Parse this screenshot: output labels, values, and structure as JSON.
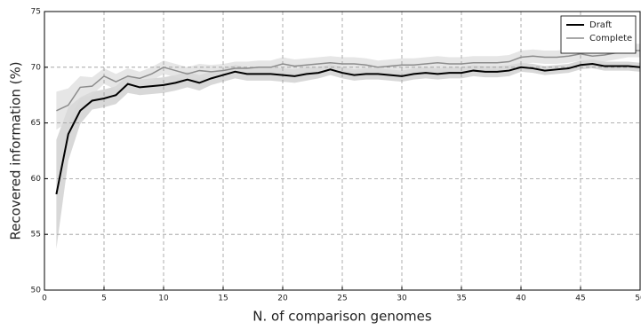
{
  "chart_data": {
    "type": "line",
    "x_label": "N. of comparison genomes",
    "y_label": "Recovered information (%)",
    "x": [
      1,
      2,
      3,
      4,
      5,
      6,
      7,
      8,
      9,
      10,
      11,
      12,
      13,
      14,
      15,
      16,
      17,
      18,
      19,
      20,
      21,
      22,
      23,
      24,
      25,
      26,
      27,
      28,
      29,
      30,
      31,
      32,
      33,
      34,
      35,
      36,
      37,
      38,
      39,
      40,
      41,
      42,
      43,
      44,
      45,
      46,
      47,
      48,
      49,
      50
    ],
    "series": [
      {
        "name": "Draft",
        "color": "#000000",
        "band_color": "#c8c8c8",
        "values": [
          58.6,
          64.0,
          66.1,
          67.0,
          67.2,
          67.5,
          68.5,
          68.2,
          68.3,
          68.4,
          68.6,
          68.9,
          68.6,
          69.0,
          69.3,
          69.6,
          69.4,
          69.4,
          69.4,
          69.3,
          69.2,
          69.4,
          69.5,
          69.8,
          69.5,
          69.3,
          69.4,
          69.4,
          69.3,
          69.2,
          69.4,
          69.5,
          69.4,
          69.5,
          69.5,
          69.7,
          69.6,
          69.6,
          69.7,
          70.0,
          69.9,
          69.7,
          69.8,
          69.9,
          70.2,
          70.3,
          70.1,
          70.1,
          70.1,
          70.0
        ],
        "error": [
          4.9,
          2.4,
          1.2,
          0.8,
          0.8,
          0.8,
          0.8,
          0.7,
          0.7,
          0.7,
          0.7,
          0.7,
          0.7,
          0.6,
          0.6,
          0.6,
          0.6,
          0.6,
          0.6,
          0.6,
          0.6,
          0.6,
          0.5,
          0.5,
          0.5,
          0.5,
          0.5,
          0.5,
          0.5,
          0.5,
          0.5,
          0.5,
          0.5,
          0.5,
          0.5,
          0.5,
          0.5,
          0.5,
          0.5,
          0.4,
          0.4,
          0.4,
          0.4,
          0.4,
          0.4,
          0.4,
          0.4,
          0.4,
          0.4,
          0.4
        ]
      },
      {
        "name": "Complete",
        "color": "#8c8c8c",
        "band_color": "#dcdcdc",
        "values": [
          66.1,
          66.6,
          68.2,
          68.3,
          69.2,
          68.7,
          69.2,
          69.0,
          69.4,
          70.0,
          69.7,
          69.4,
          69.7,
          69.6,
          69.7,
          69.9,
          69.9,
          70.0,
          70.0,
          70.3,
          70.1,
          70.2,
          70.3,
          70.4,
          70.3,
          70.3,
          70.2,
          70.0,
          70.1,
          70.2,
          70.2,
          70.3,
          70.4,
          70.3,
          70.3,
          70.4,
          70.4,
          70.4,
          70.5,
          70.9,
          71.0,
          70.9,
          70.9,
          71.0,
          71.2,
          71.0,
          71.1,
          71.3,
          71.5,
          71.5
        ],
        "error": [
          1.7,
          1.5,
          1.0,
          0.8,
          0.7,
          0.7,
          0.7,
          0.6,
          0.6,
          0.6,
          0.6,
          0.6,
          0.6,
          0.6,
          0.6,
          0.6,
          0.6,
          0.6,
          0.6,
          0.6,
          0.6,
          0.6,
          0.6,
          0.6,
          0.6,
          0.6,
          0.6,
          0.6,
          0.6,
          0.6,
          0.6,
          0.6,
          0.6,
          0.6,
          0.6,
          0.6,
          0.6,
          0.6,
          0.6,
          0.6,
          0.6,
          0.6,
          0.6,
          0.6,
          0.6,
          0.6,
          0.6,
          0.6,
          0.6,
          0.6
        ]
      }
    ],
    "xlim": [
      0,
      50
    ],
    "xticks": [
      0,
      5,
      10,
      15,
      20,
      25,
      30,
      35,
      40,
      45,
      50
    ],
    "ylim": [
      50,
      75
    ],
    "yticks": [
      50,
      55,
      60,
      65,
      70,
      75
    ],
    "grid": true,
    "legend": "upper right"
  }
}
